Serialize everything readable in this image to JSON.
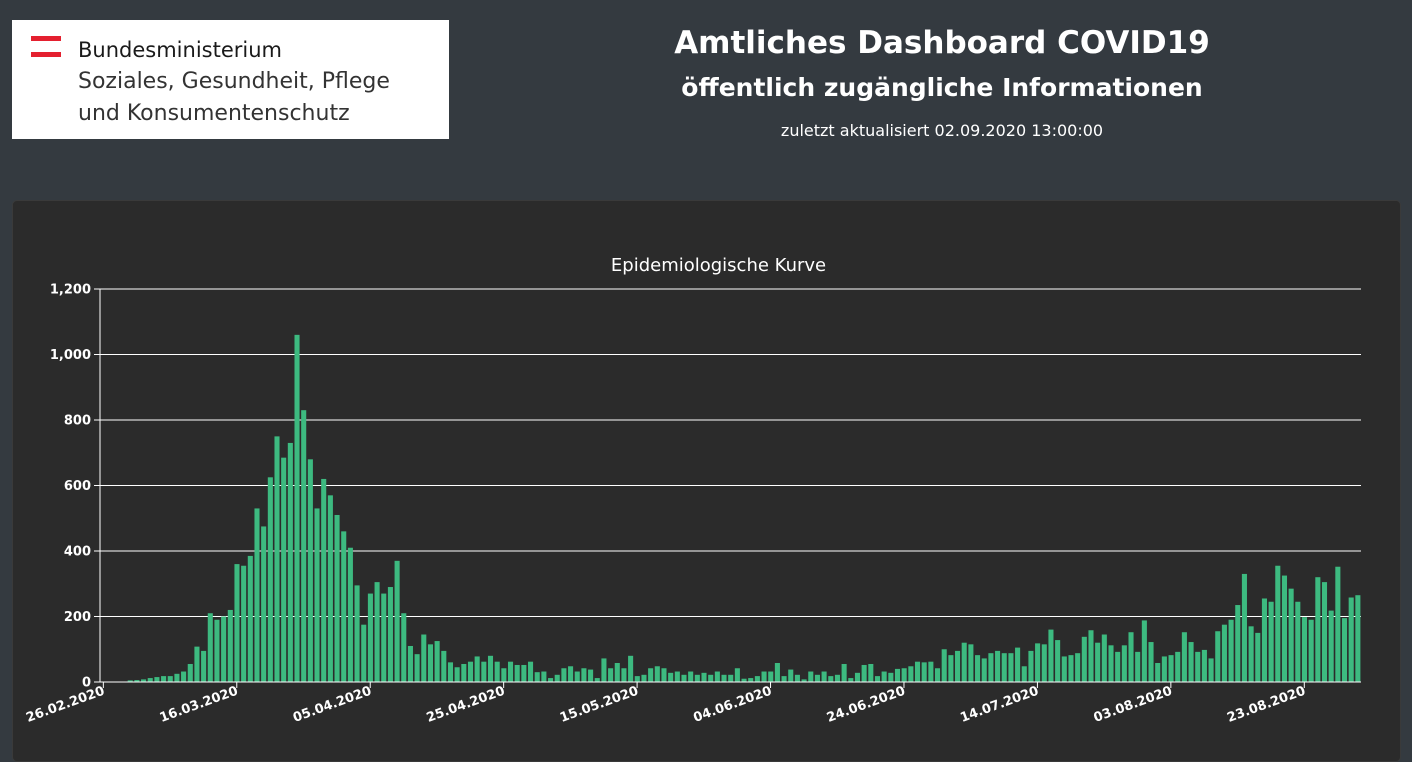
{
  "logo": {
    "line1": "Bundesministerium",
    "line2": "Soziales, Gesundheit, Pflege",
    "line3": "und Konsumentenschutz",
    "flag_colors": [
      "#e4202f",
      "#ffffff",
      "#e4202f"
    ]
  },
  "header": {
    "title": "Amtliches Dashboard COVID19",
    "subtitle": "öffentlich zugängliche Informationen",
    "updated": "zuletzt aktualisiert 02.09.2020 13:00:00"
  },
  "colors": {
    "bar": "#3dba80",
    "background": "#343a40",
    "card": "#2b2b2b"
  },
  "chart_data": {
    "type": "bar",
    "title": "Epidemiologische Kurve",
    "xlabel": "",
    "ylabel": "",
    "ylim": [
      0,
      1200
    ],
    "yticks": [
      "0",
      "200",
      "400",
      "600",
      "800",
      "1,000",
      "1,200"
    ],
    "ytick_values": [
      0,
      200,
      400,
      600,
      800,
      1000,
      1200
    ],
    "start_date": "26.02.2020",
    "xtick_labels": [
      "26.02.2020",
      "16.03.2020",
      "05.04.2020",
      "25.04.2020",
      "15.05.2020",
      "04.06.2020",
      "24.06.2020",
      "14.07.2020",
      "03.08.2020",
      "23.08.2020"
    ],
    "xtick_day_index": [
      0,
      20,
      40,
      60,
      80,
      100,
      120,
      140,
      160,
      180
    ],
    "grid": true,
    "values": [
      0,
      0,
      0,
      0,
      5,
      6,
      8,
      12,
      15,
      18,
      18,
      25,
      32,
      55,
      108,
      95,
      210,
      190,
      200,
      220,
      360,
      355,
      385,
      530,
      475,
      625,
      750,
      685,
      730,
      1060,
      830,
      680,
      530,
      620,
      570,
      510,
      460,
      410,
      295,
      175,
      270,
      305,
      270,
      290,
      370,
      210,
      110,
      85,
      145,
      115,
      125,
      95,
      60,
      45,
      55,
      62,
      78,
      62,
      80,
      62,
      42,
      62,
      52,
      52,
      62,
      30,
      32,
      12,
      22,
      42,
      48,
      32,
      42,
      38,
      12,
      72,
      42,
      58,
      42,
      80,
      18,
      22,
      42,
      48,
      42,
      28,
      32,
      22,
      32,
      22,
      28,
      22,
      32,
      22,
      22,
      42,
      10,
      12,
      18,
      32,
      32,
      58,
      18,
      38,
      22,
      8,
      32,
      22,
      32,
      18,
      22,
      55,
      12,
      28,
      52,
      55,
      18,
      32,
      28,
      40,
      42,
      48,
      62,
      60,
      62,
      42,
      100,
      82,
      95,
      120,
      115,
      82,
      72,
      88,
      95,
      88,
      88,
      105,
      48,
      95,
      118,
      115,
      160,
      128,
      78,
      82,
      88,
      138,
      158,
      120,
      145,
      112,
      92,
      112,
      152,
      92,
      188,
      122,
      58,
      78,
      82,
      92,
      152,
      122,
      92,
      98,
      72,
      155,
      175,
      190,
      235,
      330,
      170,
      150,
      255,
      245,
      355,
      325,
      285,
      245,
      198,
      190,
      320,
      305,
      218,
      352,
      195,
      258,
      265
    ]
  }
}
